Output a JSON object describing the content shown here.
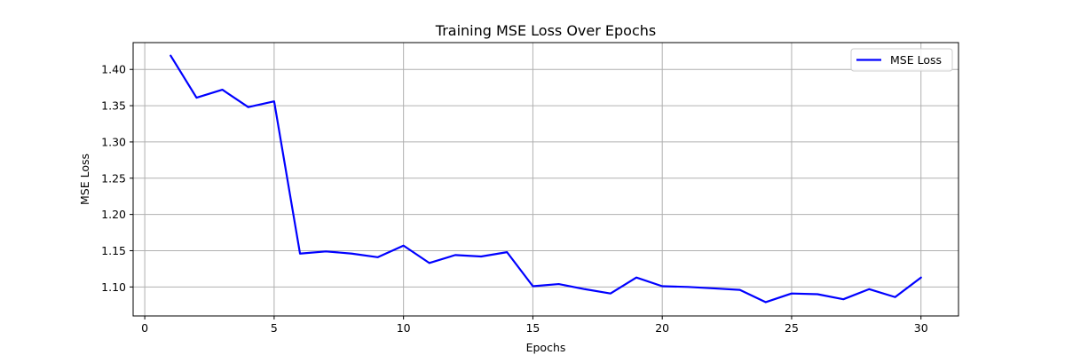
{
  "chart_data": {
    "type": "line",
    "title": "Training MSE Loss Over Epochs",
    "xlabel": "Epochs",
    "ylabel": "MSE Loss",
    "x_ticks": [
      0,
      5,
      10,
      15,
      20,
      25,
      30
    ],
    "y_ticks": [
      1.1,
      1.15,
      1.2,
      1.25,
      1.3,
      1.35,
      1.4
    ],
    "xlim": [
      -0.45,
      31.45
    ],
    "ylim": [
      1.06,
      1.437
    ],
    "grid": true,
    "legend_position": "upper right",
    "series": [
      {
        "name": "MSE Loss",
        "color": "#0000ff",
        "x": [
          1,
          2,
          3,
          4,
          5,
          6,
          7,
          8,
          9,
          10,
          11,
          12,
          13,
          14,
          15,
          16,
          17,
          18,
          19,
          20,
          21,
          22,
          23,
          24,
          25,
          26,
          27,
          28,
          29,
          30
        ],
        "values": [
          1.419,
          1.361,
          1.372,
          1.348,
          1.356,
          1.146,
          1.149,
          1.146,
          1.141,
          1.157,
          1.133,
          1.144,
          1.142,
          1.148,
          1.101,
          1.104,
          1.097,
          1.091,
          1.113,
          1.101,
          1.1,
          1.098,
          1.096,
          1.079,
          1.091,
          1.09,
          1.083,
          1.097,
          1.086,
          1.113
        ]
      }
    ]
  }
}
